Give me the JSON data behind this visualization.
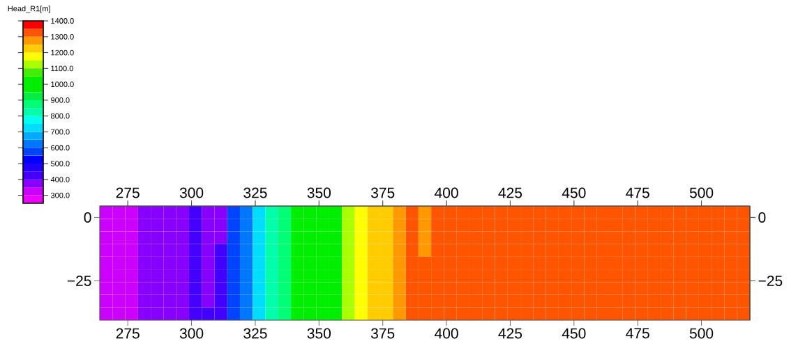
{
  "chart_data": {
    "type": "heatmap",
    "clabel": "Head_R1[m]",
    "x": [
      266.5,
      271.5,
      276.5,
      281.5,
      286.5,
      291.5,
      296.5,
      301.5,
      306.5,
      311.5,
      316.5,
      321.5,
      326.5,
      331.5,
      336.5,
      341.5,
      346.5,
      351.5,
      356.5,
      361.5,
      366.5,
      371.5,
      376.5,
      381.5,
      386.5,
      391.5,
      396.5,
      401.5,
      406.5,
      411.5,
      416.5,
      421.5,
      426.5,
      431.5,
      436.5,
      441.5,
      446.5,
      451.5,
      456.5,
      461.5,
      466.5,
      471.5,
      476.5,
      481.5,
      486.5,
      491.5,
      496.5,
      501.5,
      506.5,
      511.5,
      516.5
    ],
    "y": [
      2,
      -3,
      -8,
      -13,
      -18,
      -23,
      -28,
      -33,
      -38
    ],
    "cells": [
      [
        325,
        325,
        325,
        375,
        375,
        375,
        375,
        425,
        375,
        375,
        575,
        625,
        725,
        825,
        875,
        975,
        975,
        975,
        975,
        1125,
        1175,
        1225,
        1225,
        1275,
        1325,
        1275,
        1325,
        1325,
        1325,
        1325,
        1325,
        1325,
        1325,
        1325,
        1325,
        1325,
        1325,
        1325,
        1325,
        1325,
        1325,
        1325,
        1325,
        1325,
        1325,
        1325,
        1325,
        1325,
        1325,
        1325,
        1325
      ],
      [
        325,
        325,
        325,
        375,
        375,
        375,
        375,
        425,
        375,
        375,
        575,
        625,
        725,
        825,
        875,
        975,
        975,
        975,
        975,
        1125,
        1175,
        1225,
        1225,
        1275,
        1325,
        1275,
        1325,
        1325,
        1325,
        1325,
        1325,
        1325,
        1325,
        1325,
        1325,
        1325,
        1325,
        1325,
        1325,
        1325,
        1325,
        1325,
        1325,
        1325,
        1325,
        1325,
        1325,
        1325,
        1325,
        1325,
        1325
      ],
      [
        325,
        325,
        325,
        375,
        375,
        375,
        375,
        425,
        375,
        375,
        575,
        625,
        725,
        825,
        875,
        975,
        975,
        975,
        975,
        1125,
        1175,
        1225,
        1225,
        1275,
        1325,
        1275,
        1325,
        1325,
        1325,
        1325,
        1325,
        1325,
        1325,
        1325,
        1325,
        1325,
        1325,
        1325,
        1325,
        1325,
        1325,
        1325,
        1325,
        1325,
        1325,
        1325,
        1325,
        1325,
        1325,
        1325,
        1325
      ],
      [
        325,
        325,
        325,
        375,
        375,
        375,
        375,
        425,
        375,
        425,
        575,
        625,
        725,
        825,
        875,
        975,
        975,
        975,
        975,
        1125,
        1175,
        1225,
        1225,
        1275,
        1325,
        1275,
        1325,
        1325,
        1325,
        1325,
        1325,
        1325,
        1325,
        1325,
        1325,
        1325,
        1325,
        1325,
        1325,
        1325,
        1325,
        1325,
        1325,
        1325,
        1325,
        1325,
        1325,
        1325,
        1325,
        1325,
        1325
      ],
      [
        325,
        325,
        325,
        375,
        375,
        375,
        375,
        425,
        375,
        425,
        575,
        625,
        725,
        825,
        875,
        975,
        975,
        975,
        975,
        1125,
        1175,
        1225,
        1225,
        1275,
        1325,
        1325,
        1325,
        1325,
        1325,
        1325,
        1325,
        1325,
        1325,
        1325,
        1325,
        1325,
        1325,
        1325,
        1325,
        1325,
        1325,
        1325,
        1325,
        1325,
        1325,
        1325,
        1325,
        1325,
        1325,
        1325,
        1325
      ],
      [
        325,
        325,
        325,
        375,
        375,
        375,
        375,
        425,
        375,
        425,
        575,
        625,
        725,
        825,
        875,
        975,
        975,
        975,
        975,
        1125,
        1175,
        1225,
        1225,
        1275,
        1325,
        1325,
        1325,
        1325,
        1325,
        1325,
        1325,
        1325,
        1325,
        1325,
        1325,
        1325,
        1325,
        1325,
        1325,
        1325,
        1325,
        1325,
        1325,
        1325,
        1325,
        1325,
        1325,
        1325,
        1325,
        1325,
        1325
      ],
      [
        325,
        325,
        325,
        375,
        375,
        375,
        375,
        425,
        375,
        425,
        575,
        625,
        725,
        825,
        875,
        975,
        975,
        975,
        975,
        1125,
        1175,
        1225,
        1225,
        1275,
        1325,
        1325,
        1325,
        1325,
        1325,
        1325,
        1325,
        1325,
        1325,
        1325,
        1325,
        1325,
        1325,
        1325,
        1325,
        1325,
        1325,
        1325,
        1325,
        1325,
        1325,
        1325,
        1325,
        1325,
        1325,
        1325,
        1325
      ],
      [
        325,
        325,
        325,
        375,
        375,
        375,
        375,
        425,
        375,
        425,
        575,
        625,
        725,
        825,
        875,
        975,
        975,
        975,
        975,
        1125,
        1175,
        1225,
        1225,
        1275,
        1325,
        1325,
        1325,
        1325,
        1325,
        1325,
        1325,
        1325,
        1325,
        1325,
        1325,
        1325,
        1325,
        1325,
        1325,
        1325,
        1325,
        1325,
        1325,
        1325,
        1325,
        1325,
        1325,
        1325,
        1325,
        1325,
        1325
      ],
      [
        325,
        325,
        325,
        375,
        375,
        375,
        375,
        425,
        425,
        425,
        575,
        625,
        725,
        825,
        875,
        975,
        975,
        975,
        975,
        1125,
        1175,
        1225,
        1225,
        1275,
        1325,
        1325,
        1325,
        1325,
        1325,
        1325,
        1325,
        1325,
        1325,
        1325,
        1325,
        1325,
        1325,
        1325,
        1325,
        1325,
        1325,
        1325,
        1325,
        1325,
        1325,
        1325,
        1325,
        1325,
        1325,
        1325,
        1325
      ]
    ],
    "colors": [
      "#ee00ff",
      "#cc00ff",
      "#8800ff",
      "#4400ff",
      "#2200ff",
      "#0000ff",
      "#0044ff",
      "#0077ff",
      "#00aaff",
      "#00ddff",
      "#00ffee",
      "#00ffaa",
      "#00ff77",
      "#00ee44",
      "#00ee00",
      "#00ee00",
      "#44ee00",
      "#aaff00",
      "#ffff00",
      "#ffcc00",
      "#ff9900",
      "#ff5500",
      "#ff0000"
    ],
    "clim": [
      250,
      1400
    ],
    "cticks": [
      {
        "value": 300,
        "label": "300.0"
      },
      {
        "value": 400,
        "label": "400.0"
      },
      {
        "value": 500,
        "label": "500.0"
      },
      {
        "value": 600,
        "label": "600.0"
      },
      {
        "value": 700,
        "label": "700.0"
      },
      {
        "value": 800,
        "label": "800.0"
      },
      {
        "value": 900,
        "label": "900.0"
      },
      {
        "value": 1000,
        "label": "1000.0"
      },
      {
        "value": 1100,
        "label": "1100.0"
      },
      {
        "value": 1200,
        "label": "1200.0"
      },
      {
        "value": 1300,
        "label": "1300.0"
      },
      {
        "value": 1400,
        "label": "1400.0"
      }
    ],
    "xlim": [
      264,
      519
    ],
    "xticks": [
      275,
      300,
      325,
      350,
      375,
      400,
      425,
      450,
      475,
      500
    ],
    "x2lim": [
      264,
      519
    ],
    "x2ticks": [
      275,
      300,
      325,
      350,
      375,
      400,
      425,
      450,
      475,
      500
    ],
    "ylim": [
      -40.5,
      4.5
    ],
    "yticks": [
      {
        "value": -25,
        "label": "−25"
      },
      0
    ],
    "y2lim": [
      -40.5,
      4.5
    ],
    "y2ticks": [
      {
        "value": -25,
        "label": "−25"
      },
      0
    ]
  }
}
